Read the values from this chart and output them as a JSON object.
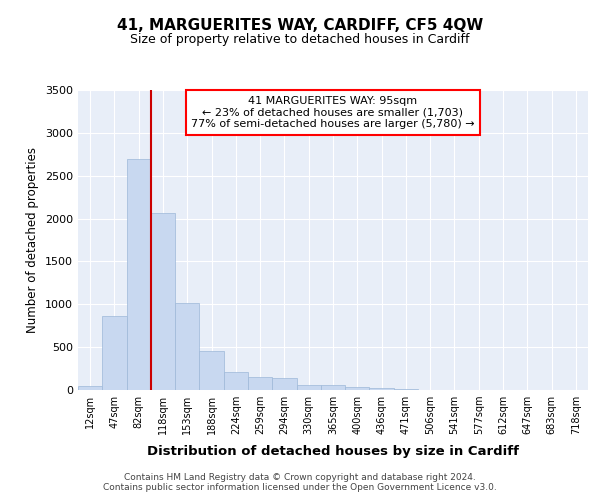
{
  "title": "41, MARGUERITES WAY, CARDIFF, CF5 4QW",
  "subtitle": "Size of property relative to detached houses in Cardiff",
  "xlabel": "Distribution of detached houses by size in Cardiff",
  "ylabel": "Number of detached properties",
  "bin_labels": [
    "12sqm",
    "47sqm",
    "82sqm",
    "118sqm",
    "153sqm",
    "188sqm",
    "224sqm",
    "259sqm",
    "294sqm",
    "330sqm",
    "365sqm",
    "400sqm",
    "436sqm",
    "471sqm",
    "506sqm",
    "541sqm",
    "577sqm",
    "612sqm",
    "647sqm",
    "683sqm",
    "718sqm"
  ],
  "bar_heights": [
    50,
    860,
    2700,
    2060,
    1010,
    460,
    215,
    150,
    140,
    60,
    55,
    35,
    20,
    15,
    5,
    4,
    3,
    2,
    1,
    1,
    1
  ],
  "bar_color": "#c8d8f0",
  "bar_edgecolor": "#9db8d8",
  "vline_x": 2.5,
  "vline_color": "#cc0000",
  "annotation_line1": "41 MARGUERITES WAY: 95sqm",
  "annotation_line2": "← 23% of detached houses are smaller (1,703)",
  "annotation_line3": "77% of semi-detached houses are larger (5,780) →",
  "ylim": [
    0,
    3500
  ],
  "yticks": [
    0,
    500,
    1000,
    1500,
    2000,
    2500,
    3000,
    3500
  ],
  "background_color": "#e8eef8",
  "grid_color": "#ffffff",
  "title_fontsize": 11,
  "subtitle_fontsize": 9,
  "ylabel_fontsize": 8.5,
  "xlabel_fontsize": 9.5,
  "footer_line1": "Contains HM Land Registry data © Crown copyright and database right 2024.",
  "footer_line2": "Contains public sector information licensed under the Open Government Licence v3.0."
}
